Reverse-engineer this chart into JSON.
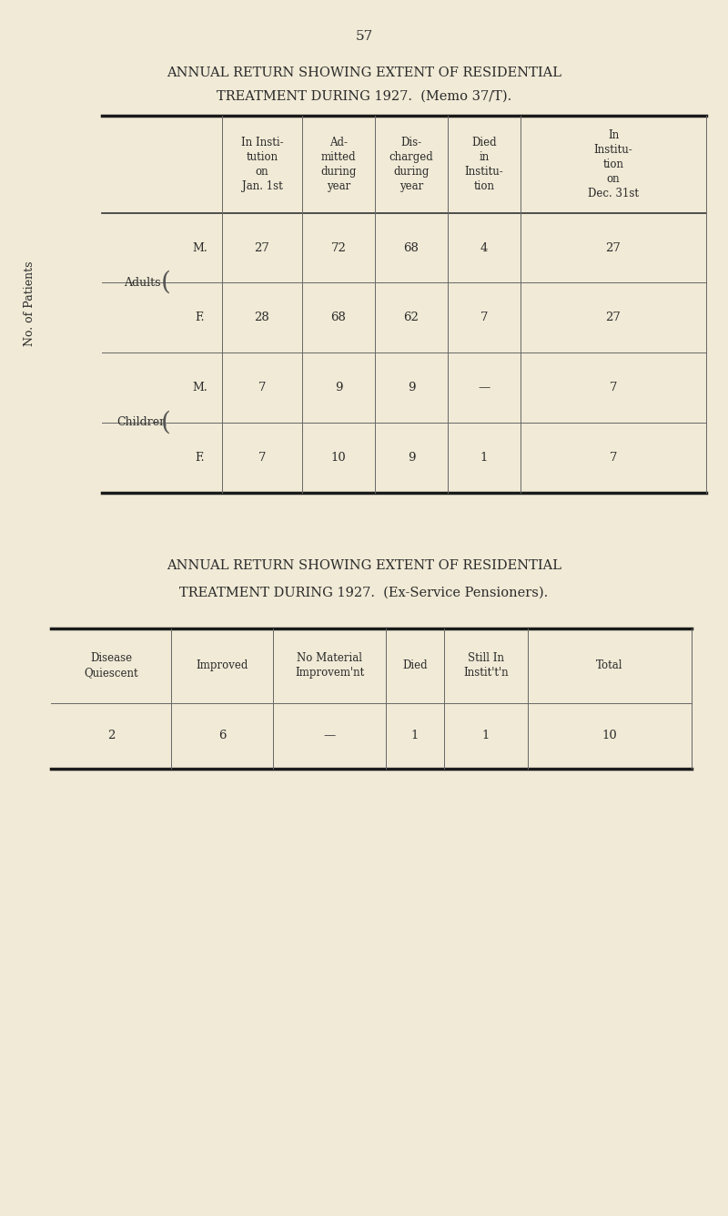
{
  "bg_color": "#f0ead6",
  "page_number": "57",
  "table1_title1": "ANNUAL RETURN SHOWING EXTENT OF RESIDENTIAL",
  "table1_title2": "TREATMENT DURING 1927.  (Memo 37/T).",
  "table1_col_headers": [
    "In Insti-\ntution\non\nJan. 1st",
    "Ad-\nmitted\nduring\nyear",
    "Dis-\ncharged\nduring\nyear",
    "Died\nin\nInstitu-\ntion",
    "In\nInstitu-\ntion\non\nDec. 31st"
  ],
  "table1_data": [
    [
      "27",
      "72",
      "68",
      "4",
      "27"
    ],
    [
      "28",
      "68",
      "62",
      "7",
      "27"
    ],
    [
      "7",
      "9",
      "9",
      "—",
      "7"
    ],
    [
      "7",
      "10",
      "9",
      "1",
      "7"
    ]
  ],
  "table1_ylabel": "No. of Patients",
  "table1_groups": [
    "Adults",
    "Children"
  ],
  "table1_genders": [
    "M.",
    "F.",
    "M.",
    "F."
  ],
  "table2_title1": "ANNUAL RETURN SHOWING EXTENT OF RESIDENTIAL",
  "table2_title2": "TREATMENT DURING 1927.  (Ex-Service Pensioners).",
  "table2_col_headers": [
    "Disease\nQuiescent",
    "Improved",
    "No Material\nImprovem'nt",
    "Died",
    "Still In\nInstit't'n",
    "Total"
  ],
  "table2_data": [
    "2",
    "6",
    "—",
    "1",
    "1",
    "10"
  ]
}
